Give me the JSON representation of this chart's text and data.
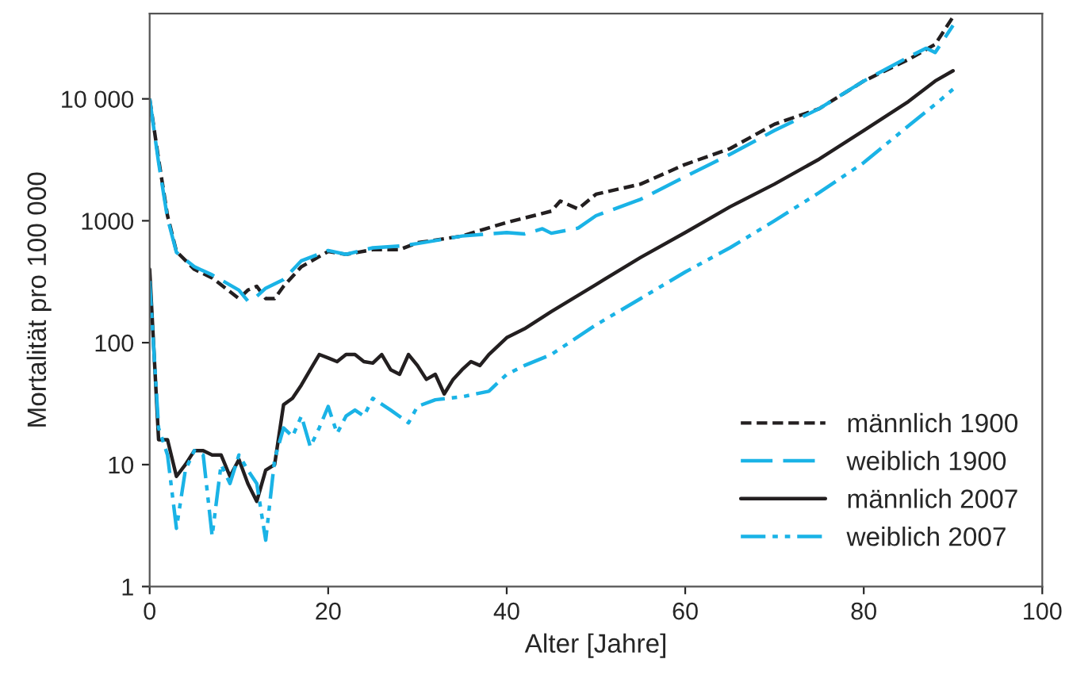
{
  "chart_data": {
    "type": "line",
    "xlabel": "Alter [Jahre]",
    "ylabel": "Mortalität pro 100 000",
    "log": "y",
    "grid": false,
    "legend": "bottom right",
    "marker": "none",
    "xlim": [
      0,
      100
    ],
    "xticks": [
      0,
      20,
      40,
      60,
      80,
      100
    ],
    "ylim": [
      1,
      50000
    ],
    "yticks": [
      1,
      10,
      100,
      1000,
      {
        "value": 10000,
        "label": "10 000"
      }
    ],
    "series": [
      {
        "name": "männlich 1900",
        "color": "#231f20",
        "line_style": "dashed",
        "x": [
          0,
          1,
          2,
          3,
          5,
          7,
          10,
          11,
          12,
          13,
          14,
          15,
          17,
          20,
          22,
          25,
          28,
          30,
          35,
          40,
          43,
          45,
          46,
          48,
          50,
          55,
          60,
          65,
          70,
          75,
          80,
          85,
          88,
          90
        ],
        "values": [
          10000,
          3200,
          1100,
          560,
          400,
          340,
          230,
          270,
          290,
          230,
          230,
          290,
          420,
          560,
          530,
          580,
          580,
          660,
          750,
          970,
          1100,
          1200,
          1450,
          1250,
          1650,
          2000,
          2900,
          3900,
          6200,
          8300,
          14000,
          21000,
          28000,
          47000
        ]
      },
      {
        "name": "weiblich 1900",
        "color": "#1ab3e6",
        "line_style": "longdash",
        "x": [
          0,
          1,
          2,
          3,
          5,
          7,
          10,
          11,
          12,
          13,
          15,
          17,
          20,
          22,
          25,
          28,
          30,
          35,
          40,
          42,
          44,
          45,
          48,
          50,
          55,
          60,
          65,
          70,
          75,
          80,
          85,
          87,
          88,
          90
        ],
        "values": [
          10000,
          3000,
          1050,
          550,
          420,
          360,
          270,
          220,
          240,
          280,
          330,
          470,
          570,
          530,
          600,
          620,
          650,
          750,
          800,
          780,
          860,
          790,
          870,
          1100,
          1500,
          2300,
          3500,
          5500,
          8300,
          14000,
          22000,
          26000,
          24000,
          40000
        ]
      },
      {
        "name": "männlich 2007",
        "color": "#231f20",
        "line_style": "solid",
        "x": [
          0,
          1,
          2,
          3,
          4,
          5,
          6,
          7,
          8,
          9,
          10,
          11,
          12,
          13,
          14,
          15,
          16,
          17,
          18,
          19,
          20,
          21,
          22,
          23,
          24,
          25,
          26,
          27,
          28,
          29,
          30,
          31,
          32,
          33,
          34,
          35,
          36,
          37,
          38,
          40,
          42,
          45,
          50,
          55,
          60,
          65,
          70,
          75,
          80,
          85,
          88,
          90
        ],
        "values": [
          400,
          16,
          16,
          8,
          10,
          13,
          13,
          12,
          12,
          8,
          11,
          7,
          5,
          9,
          10,
          31,
          35,
          45,
          60,
          80,
          75,
          70,
          80,
          80,
          70,
          68,
          80,
          60,
          55,
          80,
          65,
          50,
          55,
          38,
          50,
          60,
          70,
          65,
          80,
          110,
          130,
          180,
          300,
          500,
          800,
          1300,
          2000,
          3200,
          5500,
          9500,
          14000,
          17000
        ]
      },
      {
        "name": "weiblich 2007",
        "color": "#1ab3e6",
        "line_style": "dashdot",
        "x": [
          0,
          1,
          2,
          3,
          4,
          5,
          6,
          7,
          8,
          9,
          10,
          11,
          12,
          13,
          14,
          15,
          16,
          17,
          18,
          19,
          20,
          21,
          22,
          23,
          24,
          25,
          27,
          29,
          30,
          32,
          35,
          38,
          40,
          42,
          45,
          50,
          55,
          60,
          65,
          70,
          75,
          80,
          85,
          88,
          90
        ],
        "values": [
          320,
          20,
          12,
          3,
          9,
          13,
          12,
          2.6,
          10,
          7,
          12,
          9,
          7,
          2.4,
          11,
          20,
          17,
          25,
          14,
          20,
          30,
          18,
          25,
          28,
          25,
          35,
          28,
          22,
          30,
          34,
          36,
          40,
          55,
          65,
          80,
          140,
          230,
          380,
          600,
          1000,
          1700,
          3000,
          6000,
          9000,
          12000
        ]
      }
    ]
  }
}
